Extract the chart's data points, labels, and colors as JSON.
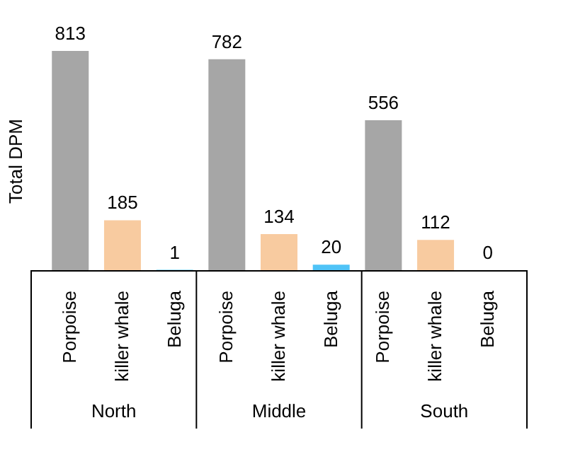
{
  "chart_data": {
    "type": "bar",
    "ylabel": "Total DPM",
    "categories": [
      "Porpoise",
      "killer whale",
      "Beluga",
      "Porpoise",
      "killer whale",
      "Beluga",
      "Porpoise",
      "killer whale",
      "Beluga"
    ],
    "values": [
      813,
      185,
      1,
      782,
      134,
      20,
      556,
      112,
      0
    ],
    "colors": [
      "#a6a6a6",
      "#f8cba0",
      "#4fc3f7",
      "#a6a6a6",
      "#f8cba0",
      "#4fc3f7",
      "#a6a6a6",
      "#f8cba0",
      "#4fc3f7"
    ],
    "data_labels": true,
    "annotations": [
      "North",
      "Middle",
      "South"
    ]
  }
}
